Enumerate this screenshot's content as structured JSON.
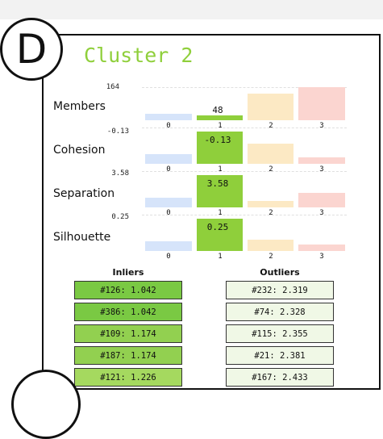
{
  "badge_letter": "D",
  "title": "Cluster 2",
  "title_color": "#8fcf3b",
  "metrics": [
    {
      "label": "Members",
      "ymax": "164",
      "ymin": "-0.13",
      "value_label": "48"
    },
    {
      "label": "Cohesion",
      "ymax": "",
      "ymin": "",
      "value_label": "-0.13"
    },
    {
      "label": "Separation",
      "ymax": "3.58",
      "ymin": "",
      "value_label": "3.58"
    },
    {
      "label": "Silhouette",
      "ymax": "0.25",
      "ymin": "",
      "value_label": "0.25"
    }
  ],
  "categories": [
    "0",
    "1",
    "2",
    "3"
  ],
  "bar_colors": [
    "#d6e4fa",
    "#8fcf3b",
    "#fce9c4",
    "#fbd5d0"
  ],
  "inliers": {
    "header": "Inliers",
    "items": [
      "#126: 1.042",
      "#386: 1.042",
      "#109: 1.174",
      "#187: 1.174",
      "#121: 1.226"
    ],
    "colors": [
      "#7ac943",
      "#7ac943",
      "#92d050",
      "#92d050",
      "#a5d95f"
    ]
  },
  "outliers": {
    "header": "Outliers",
    "items": [
      "#232: 2.319",
      "#74: 2.328",
      "#115: 2.355",
      "#21: 2.381",
      "#167: 2.433"
    ],
    "color": "#f0f8e6"
  }
}
